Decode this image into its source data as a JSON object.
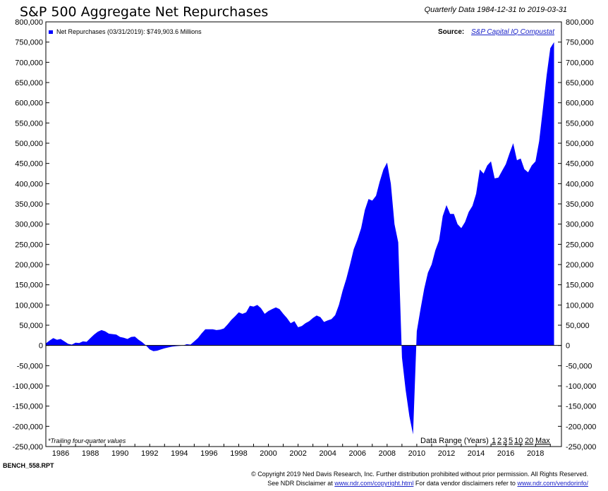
{
  "header": {
    "title": "S&P 500 Aggregate Net Repurchases",
    "subtitle": "Quarterly Data 1984-12-31 to 2019-03-31"
  },
  "legend": {
    "label": "Net Repurchases (03/31/2019): $749,903.6 Millions"
  },
  "source": {
    "label": "Source:",
    "link_text": "S&P Capital IQ Compustat"
  },
  "note": "*Trailing four-quarter values",
  "data_range": {
    "label": "Data Range (Years)",
    "links": [
      "1",
      "2",
      "3",
      "5",
      "10",
      "20",
      "Max"
    ]
  },
  "footer": {
    "report_id": "BENCH_558.RPT",
    "copyright": "© Copyright 2019 Ned Davis Research, Inc. Further distribution prohibited without prior permission. All Rights Reserved.",
    "disclaimer_prefix": "See NDR Disclaimer at",
    "disclaimer_link": "www.ndr.com/copyright.html",
    "vendor_prefix": "For data vendor disclaimers refer to",
    "vendor_link": "www.ndr.com/vendorinfo/"
  },
  "colors": {
    "fill": "#0000ff",
    "link": "#1a22c8"
  },
  "chart_data": {
    "type": "area",
    "title": "S&P 500 Aggregate Net Repurchases",
    "ylim": [
      -250000,
      800000
    ],
    "xlim": [
      1985.0,
      2019.75
    ],
    "y_ticks": [
      800000,
      750000,
      700000,
      650000,
      600000,
      550000,
      500000,
      450000,
      400000,
      350000,
      300000,
      250000,
      200000,
      150000,
      100000,
      50000,
      0,
      -50000,
      -100000,
      -150000,
      -200000,
      -250000
    ],
    "y_tick_labels": [
      "800,000",
      "750,000",
      "700,000",
      "650,000",
      "600,000",
      "550,000",
      "500,000",
      "450,000",
      "400,000",
      "350,000",
      "300,000",
      "250,000",
      "200,000",
      "150,000",
      "100,000",
      "50,000",
      "0",
      "-50,000",
      "-100,000",
      "-150,000",
      "-200,000",
      "-250,000"
    ],
    "x_ticks": [
      1986,
      1988,
      1990,
      1992,
      1994,
      1996,
      1998,
      2000,
      2002,
      2004,
      2006,
      2008,
      2010,
      2012,
      2014,
      2016,
      2018
    ],
    "x_tick_labels": [
      "1986",
      "1988",
      "1990",
      "1992",
      "1994",
      "1996",
      "1998",
      "2000",
      "2002",
      "2004",
      "2006",
      "2008",
      "2010",
      "2012",
      "2014",
      "2016",
      "2018"
    ],
    "grid": false,
    "legend_position": "top-left",
    "series": [
      {
        "name": "Net Repurchases (03/31/2019): $749,903.6 Millions",
        "points": [
          [
            1985.0,
            5000
          ],
          [
            1985.25,
            12000
          ],
          [
            1985.5,
            18000
          ],
          [
            1985.75,
            14000
          ],
          [
            1986.0,
            16000
          ],
          [
            1986.25,
            10000
          ],
          [
            1986.5,
            4000
          ],
          [
            1986.75,
            2000
          ],
          [
            1987.0,
            7000
          ],
          [
            1987.25,
            6000
          ],
          [
            1987.5,
            10000
          ],
          [
            1987.75,
            9000
          ],
          [
            1988.0,
            18000
          ],
          [
            1988.25,
            27000
          ],
          [
            1988.5,
            34000
          ],
          [
            1988.75,
            38000
          ],
          [
            1989.0,
            35000
          ],
          [
            1989.25,
            29000
          ],
          [
            1989.5,
            28000
          ],
          [
            1989.75,
            27000
          ],
          [
            1990.0,
            21000
          ],
          [
            1990.25,
            19000
          ],
          [
            1990.5,
            16000
          ],
          [
            1990.75,
            21000
          ],
          [
            1991.0,
            22000
          ],
          [
            1991.25,
            14000
          ],
          [
            1991.5,
            8000
          ],
          [
            1991.75,
            0
          ],
          [
            1992.0,
            -10000
          ],
          [
            1992.25,
            -14000
          ],
          [
            1992.5,
            -13000
          ],
          [
            1992.75,
            -10000
          ],
          [
            1993.0,
            -7000
          ],
          [
            1993.25,
            -5000
          ],
          [
            1993.5,
            -3000
          ],
          [
            1993.75,
            -2000
          ],
          [
            1994.0,
            -1000
          ],
          [
            1994.25,
            0
          ],
          [
            1994.5,
            3000
          ],
          [
            1994.75,
            2000
          ],
          [
            1995.0,
            10000
          ],
          [
            1995.25,
            18000
          ],
          [
            1995.5,
            30000
          ],
          [
            1995.75,
            40000
          ],
          [
            1996.0,
            40000
          ],
          [
            1996.25,
            40000
          ],
          [
            1996.5,
            38000
          ],
          [
            1996.75,
            39000
          ],
          [
            1997.0,
            42000
          ],
          [
            1997.25,
            52000
          ],
          [
            1997.5,
            63000
          ],
          [
            1997.75,
            72000
          ],
          [
            1998.0,
            82000
          ],
          [
            1998.25,
            78000
          ],
          [
            1998.5,
            82000
          ],
          [
            1998.75,
            98000
          ],
          [
            1999.0,
            96000
          ],
          [
            1999.25,
            100000
          ],
          [
            1999.5,
            92000
          ],
          [
            1999.75,
            78000
          ],
          [
            2000.0,
            85000
          ],
          [
            2000.25,
            90000
          ],
          [
            2000.5,
            94000
          ],
          [
            2000.75,
            90000
          ],
          [
            2001.0,
            78000
          ],
          [
            2001.25,
            68000
          ],
          [
            2001.5,
            55000
          ],
          [
            2001.75,
            60000
          ],
          [
            2002.0,
            45000
          ],
          [
            2002.25,
            48000
          ],
          [
            2002.5,
            55000
          ],
          [
            2002.75,
            60000
          ],
          [
            2003.0,
            68000
          ],
          [
            2003.25,
            74000
          ],
          [
            2003.5,
            70000
          ],
          [
            2003.75,
            58000
          ],
          [
            2004.0,
            62000
          ],
          [
            2004.25,
            65000
          ],
          [
            2004.5,
            75000
          ],
          [
            2004.75,
            100000
          ],
          [
            2005.0,
            135000
          ],
          [
            2005.25,
            165000
          ],
          [
            2005.5,
            200000
          ],
          [
            2005.75,
            238000
          ],
          [
            2006.0,
            262000
          ],
          [
            2006.25,
            290000
          ],
          [
            2006.5,
            335000
          ],
          [
            2006.75,
            362000
          ],
          [
            2007.0,
            358000
          ],
          [
            2007.25,
            370000
          ],
          [
            2007.5,
            405000
          ],
          [
            2007.75,
            435000
          ],
          [
            2008.0,
            452000
          ],
          [
            2008.25,
            400000
          ],
          [
            2008.5,
            300000
          ],
          [
            2008.75,
            255000
          ],
          [
            2009.0,
            -30000
          ],
          [
            2009.25,
            -110000
          ],
          [
            2009.5,
            -175000
          ],
          [
            2009.75,
            -220000
          ],
          [
            2010.0,
            35000
          ],
          [
            2010.25,
            90000
          ],
          [
            2010.5,
            140000
          ],
          [
            2010.75,
            180000
          ],
          [
            2011.0,
            200000
          ],
          [
            2011.25,
            235000
          ],
          [
            2011.5,
            260000
          ],
          [
            2011.75,
            320000
          ],
          [
            2012.0,
            347000
          ],
          [
            2012.25,
            325000
          ],
          [
            2012.5,
            325000
          ],
          [
            2012.75,
            300000
          ],
          [
            2013.0,
            290000
          ],
          [
            2013.25,
            305000
          ],
          [
            2013.5,
            330000
          ],
          [
            2013.75,
            345000
          ],
          [
            2014.0,
            375000
          ],
          [
            2014.25,
            435000
          ],
          [
            2014.5,
            425000
          ],
          [
            2014.75,
            445000
          ],
          [
            2015.0,
            455000
          ],
          [
            2015.25,
            413000
          ],
          [
            2015.5,
            415000
          ],
          [
            2015.75,
            432000
          ],
          [
            2016.0,
            448000
          ],
          [
            2016.25,
            475000
          ],
          [
            2016.5,
            500000
          ],
          [
            2016.75,
            458000
          ],
          [
            2017.0,
            462000
          ],
          [
            2017.25,
            436000
          ],
          [
            2017.5,
            428000
          ],
          [
            2017.75,
            445000
          ],
          [
            2018.0,
            455000
          ],
          [
            2018.25,
            505000
          ],
          [
            2018.5,
            585000
          ],
          [
            2018.75,
            668000
          ],
          [
            2019.0,
            735000
          ],
          [
            2019.25,
            749903.6
          ]
        ]
      }
    ]
  }
}
